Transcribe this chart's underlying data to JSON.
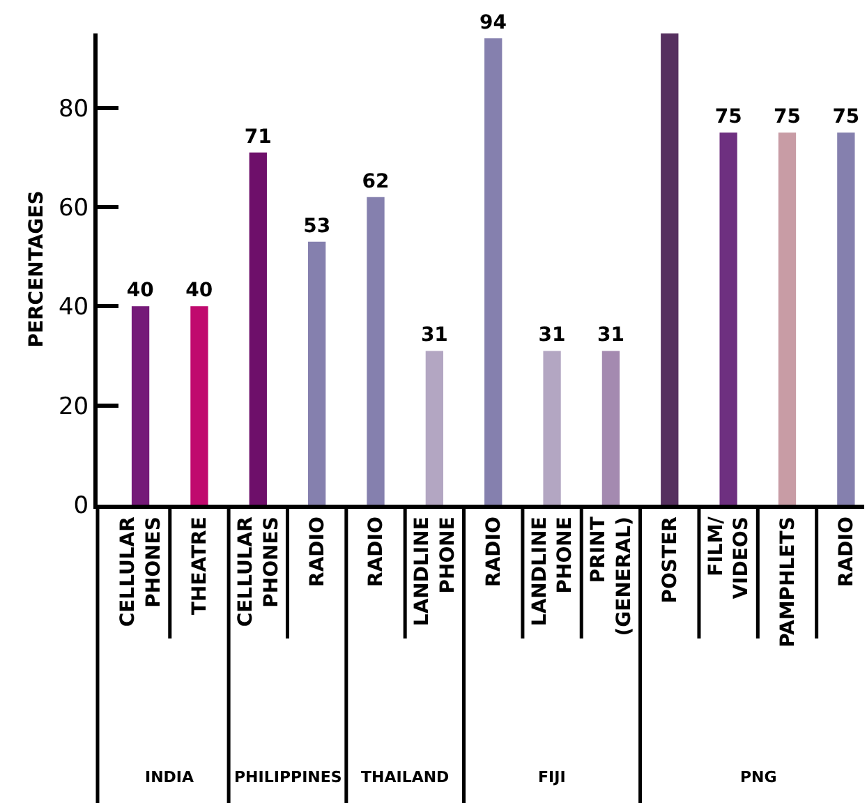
{
  "chart_data": [
    {
      "type": "bar",
      "ylabel": "PERCENTAGES",
      "xlabel": "INDIA",
      "categories": [
        "CELLULAR\nPHONES",
        "THEATRE"
      ],
      "values": [
        40,
        40
      ],
      "colors": [
        "#751a78",
        "#c00a6e"
      ],
      "value_labels": [
        "40",
        "40"
      ],
      "ylim": [
        0,
        95
      ],
      "yticks": [
        0,
        20,
        40,
        60,
        80
      ],
      "grid": false
    },
    {
      "type": "bar",
      "xlabel": "PHILIPPINES",
      "categories": [
        "CELLULAR\nPHONES",
        "RADIO"
      ],
      "values": [
        71,
        53
      ],
      "colors": [
        "#6e0f6a",
        "#8580ae"
      ],
      "value_labels": [
        "71",
        "53"
      ],
      "tick_labels": "x",
      "grid": false
    },
    {
      "type": "bar",
      "xlabel": "THAILAND",
      "categories": [
        "RADIO",
        "LANDLINE\nPHONE"
      ],
      "values": [
        62,
        31
      ],
      "colors": [
        "#8580ae",
        "#b3a6c2"
      ],
      "value_labels": [
        "62",
        "31"
      ],
      "tick_labels": "x",
      "grid": false
    },
    {
      "type": "bar",
      "xlabel": "FIJI",
      "categories": [
        "RADIO",
        "LANDLINE\nPHONE",
        "PRINT\n(GENERAL)"
      ],
      "values": [
        94,
        31,
        31
      ],
      "colors": [
        "#8580ae",
        "#b3a6c2",
        "#a48ab0"
      ],
      "value_labels": [
        "94",
        "31",
        "31"
      ],
      "tick_labels": "x",
      "grid": false
    },
    {
      "type": "bar",
      "xlabel": "PNG",
      "categories": [
        "POSTER",
        "FILM/\nVIDEOS",
        "PAMPHLETS",
        "RADIO"
      ],
      "values": [
        95,
        75,
        75,
        75
      ],
      "colors": [
        "#56305f",
        "#6e3080",
        "#c89ca5",
        "#8580ae"
      ],
      "value_labels": [
        null,
        "75",
        "75",
        "75"
      ],
      "tick_labels": "x",
      "grid": false
    }
  ]
}
